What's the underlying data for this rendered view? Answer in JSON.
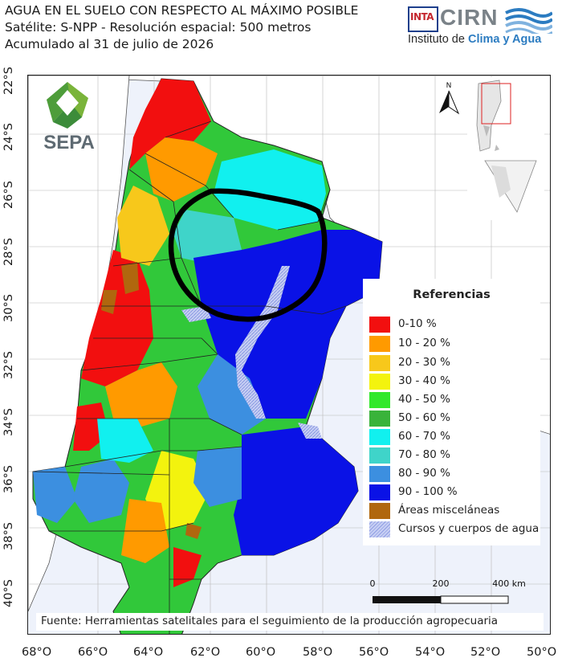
{
  "header": {
    "title": "AGUA EN EL SUELO CON RESPECTO AL MÁXIMO POSIBLE",
    "satellite": "Satélite: S-NPP - Resolución espacial: 500 metros",
    "accumulated": "Acumulado al 31 de julio de 2026"
  },
  "logos": {
    "inta": "INTA",
    "cirn": "CIRN",
    "institute_prefix": "Instituto de ",
    "institute_highlight": "Clima y Agua",
    "sepa": "SEPA"
  },
  "north_arrow": {
    "label": "N"
  },
  "axes": {
    "latitudes": [
      "22°S",
      "24°S",
      "26°S",
      "28°S",
      "30°S",
      "32°S",
      "34°S",
      "36°S",
      "38°S",
      "40°S"
    ],
    "longitudes": [
      "68°O",
      "66°O",
      "64°O",
      "62°O",
      "60°O",
      "58°O",
      "56°O",
      "54°O",
      "52°O",
      "50°O"
    ]
  },
  "legend": {
    "title": "Referencias",
    "items": [
      {
        "label": "0-10 %",
        "color": "#f20f0f"
      },
      {
        "label": "10 - 20 %",
        "color": "#ff9a00"
      },
      {
        "label": "20 - 30 %",
        "color": "#f7c81b"
      },
      {
        "label": "30 - 40 %",
        "color": "#f3f30e"
      },
      {
        "label": "40 - 50 %",
        "color": "#31e82b"
      },
      {
        "label": "50 - 60 %",
        "color": "#39b33a"
      },
      {
        "label": "60 - 70 %",
        "color": "#11f0ef"
      },
      {
        "label": "70 - 80 %",
        "color": "#3fd4c9"
      },
      {
        "label": "80 - 90 %",
        "color": "#3c8fe0"
      },
      {
        "label": "90 - 100 %",
        "color": "#0a12e6"
      },
      {
        "label": "Áreas misceláneas",
        "color": "#b0670e"
      },
      {
        "label": "Cursos y cuerpos de agua",
        "color": "#aeb8ec"
      }
    ]
  },
  "scale_bar": {
    "labels": [
      "0",
      "200",
      "400 km"
    ]
  },
  "source": "Fuente: Herramientas satelitales para el seguimiento de la producción agropecuaria",
  "colors": {
    "ocean": "#eef2fb",
    "land_outside": "#ffffff",
    "border": "#444444",
    "highlight_circle": "#000000"
  }
}
